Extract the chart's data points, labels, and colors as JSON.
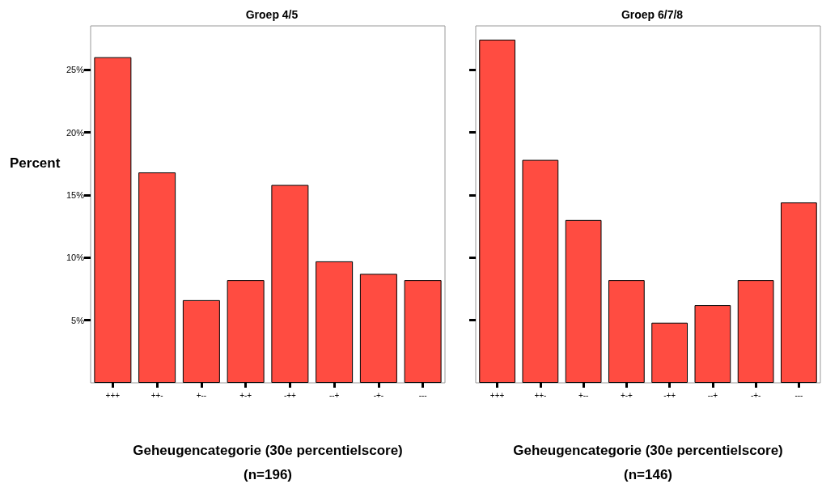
{
  "chart_data": [
    {
      "type": "bar",
      "title": "Groep 4/5",
      "xlabel": "Geheugencategorie (30e percentielscore)",
      "ylabel": "Percent",
      "annotations": [
        "(n=196)"
      ],
      "categories": [
        "+++",
        "++-",
        "+--",
        "+-+",
        "-++",
        "--+",
        "-+-",
        "---"
      ],
      "values": [
        26.0,
        16.8,
        6.6,
        8.2,
        15.8,
        9.7,
        8.7,
        8.2
      ],
      "color": "#ff4c41",
      "ylim": [
        0,
        28.5
      ],
      "yticks": [
        {
          "value": 5,
          "label": "5%"
        },
        {
          "value": 10,
          "label": "10%"
        },
        {
          "value": 15,
          "label": "15%"
        },
        {
          "value": 20,
          "label": "20%"
        },
        {
          "value": 25,
          "label": "25%"
        }
      ]
    },
    {
      "type": "bar",
      "title": "Groep 6/7/8",
      "xlabel": "Geheugencategorie (30e percentielscore)",
      "annotations": [
        "(n=146)"
      ],
      "categories": [
        "+++",
        "++-",
        "+--",
        "+-+",
        "-++",
        "--+",
        "-+-",
        "---"
      ],
      "values": [
        27.4,
        17.8,
        13.0,
        8.2,
        4.8,
        6.2,
        8.2,
        14.4
      ],
      "color": "#ff4c41",
      "ylim": [
        0,
        28.5
      ],
      "yticks": [
        {
          "value": 5,
          "label": null
        },
        {
          "value": 10,
          "label": null
        },
        {
          "value": 15,
          "label": null
        },
        {
          "value": 20,
          "label": null
        },
        {
          "value": 25,
          "label": null
        }
      ],
      "tick_labels": "x"
    }
  ]
}
